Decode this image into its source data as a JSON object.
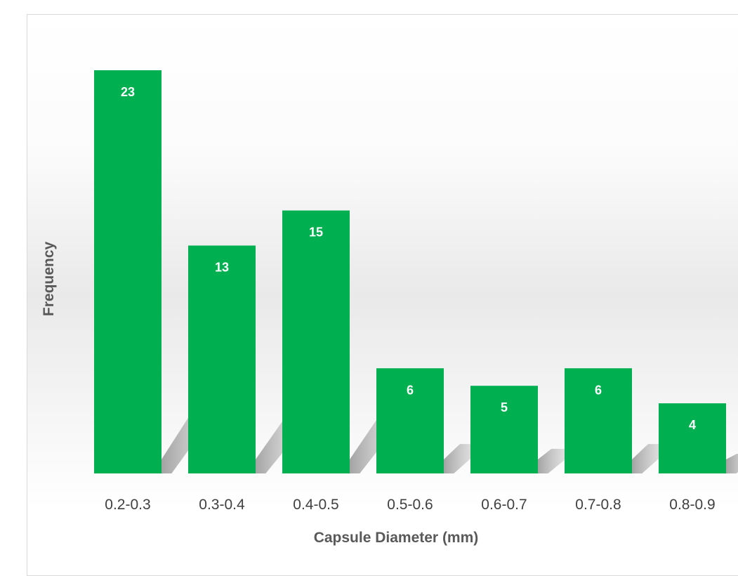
{
  "chart_data": {
    "type": "bar",
    "title": "",
    "xlabel": "Capsule Diameter (mm)",
    "ylabel": "Frequency",
    "categories": [
      "0.2-0.3",
      "0.3-0.4",
      "0.4-0.5",
      "0.5-0.6",
      "0.6-0.7",
      "0.7-0.8",
      "0.8-0.9"
    ],
    "values": [
      23,
      13,
      15,
      6,
      5,
      6,
      4
    ],
    "ylim": [
      0,
      23
    ],
    "grid": false,
    "legend": "none",
    "bar_color": "#00B050",
    "data_labels": true
  }
}
